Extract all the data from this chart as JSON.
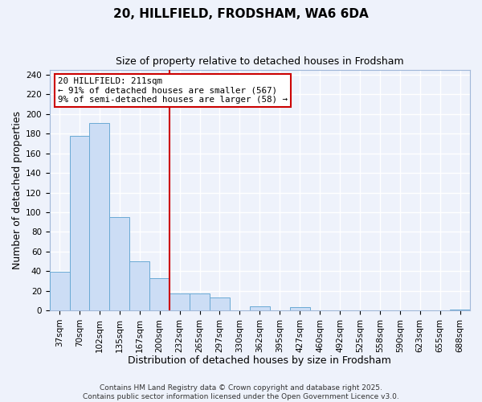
{
  "title": "20, HILLFIELD, FRODSHAM, WA6 6DA",
  "subtitle": "Size of property relative to detached houses in Frodsham",
  "xlabel": "Distribution of detached houses by size in Frodsham",
  "ylabel": "Number of detached properties",
  "bin_labels": [
    "37sqm",
    "70sqm",
    "102sqm",
    "135sqm",
    "167sqm",
    "200sqm",
    "232sqm",
    "265sqm",
    "297sqm",
    "330sqm",
    "362sqm",
    "395sqm",
    "427sqm",
    "460sqm",
    "492sqm",
    "525sqm",
    "558sqm",
    "590sqm",
    "623sqm",
    "655sqm",
    "688sqm"
  ],
  "bar_heights": [
    39,
    178,
    191,
    95,
    50,
    33,
    17,
    17,
    13,
    0,
    4,
    0,
    3,
    0,
    0,
    0,
    0,
    0,
    0,
    0,
    1
  ],
  "bar_color": "#ccddf5",
  "bar_edgecolor": "#6aaad4",
  "ylim": [
    0,
    245
  ],
  "yticks": [
    0,
    20,
    40,
    60,
    80,
    100,
    120,
    140,
    160,
    180,
    200,
    220,
    240
  ],
  "vline_x": 6.0,
  "vline_color": "#cc0000",
  "annotation_title": "20 HILLFIELD: 211sqm",
  "annotation_line1": "← 91% of detached houses are smaller (567)",
  "annotation_line2": "9% of semi-detached houses are larger (58) →",
  "annotation_box_color": "#cc0000",
  "footer_line1": "Contains HM Land Registry data © Crown copyright and database right 2025.",
  "footer_line2": "Contains public sector information licensed under the Open Government Licence v3.0.",
  "bg_color": "#eef2fb",
  "grid_color": "#ffffff",
  "title_fontsize": 11,
  "subtitle_fontsize": 9,
  "tick_fontsize": 7.5,
  "axis_label_fontsize": 9,
  "footer_fontsize": 6.5
}
